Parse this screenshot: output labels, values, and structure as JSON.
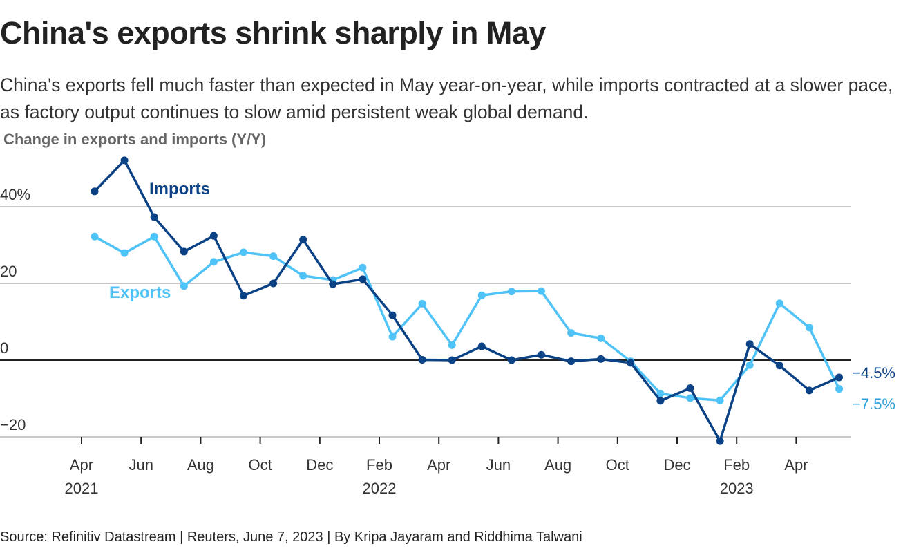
{
  "header": {
    "title": "China's exports shrink sharply in May",
    "subtitle": "China's exports fell much faster than expected in May year-on-year, while imports contracted at a slower pace, as factory output continues to slow amid persistent weak global demand."
  },
  "footer": {
    "source": "Source: Refinitiv Datastream | Reuters, June 7, 2023 | By Kripa Jayaram and Riddhima Talwani"
  },
  "colors": {
    "imports": "#0b4185",
    "exports": "#4fc3f7",
    "exports_label_end": "#2a9fd6",
    "grid": "#c8c8c8",
    "zero_line": "#222222",
    "tick_text": "#333333"
  },
  "chart_data": {
    "type": "line",
    "title": "China's exports shrink sharply in May",
    "ylabel": "Change in exports and imports (Y/Y)",
    "xlabel": "",
    "ylim": [
      -20,
      40
    ],
    "yticks": [
      {
        "value": 40,
        "label": "40%"
      },
      {
        "value": 20,
        "label": "20"
      },
      {
        "value": 0,
        "label": "0"
      },
      {
        "value": -20,
        "label": "−20"
      }
    ],
    "xticks": [
      {
        "month_index": 0,
        "label": "Apr",
        "year": "2021"
      },
      {
        "month_index": 2,
        "label": "Jun",
        "year": ""
      },
      {
        "month_index": 4,
        "label": "Aug",
        "year": ""
      },
      {
        "month_index": 6,
        "label": "Oct",
        "year": ""
      },
      {
        "month_index": 8,
        "label": "Dec",
        "year": ""
      },
      {
        "month_index": 10,
        "label": "Feb",
        "year": "2022"
      },
      {
        "month_index": 12,
        "label": "Apr",
        "year": ""
      },
      {
        "month_index": 14,
        "label": "Jun",
        "year": ""
      },
      {
        "month_index": 16,
        "label": "Aug",
        "year": ""
      },
      {
        "month_index": 18,
        "label": "Oct",
        "year": ""
      },
      {
        "month_index": 20,
        "label": "Dec",
        "year": ""
      },
      {
        "month_index": 22,
        "label": "Feb",
        "year": "2023"
      },
      {
        "month_index": 24,
        "label": "Apr",
        "year": ""
      }
    ],
    "x": [
      "2021-04",
      "2021-05",
      "2021-06",
      "2021-07",
      "2021-08",
      "2021-09",
      "2021-10",
      "2021-11",
      "2021-12",
      "2022-01",
      "2022-02",
      "2022-03",
      "2022-04",
      "2022-05",
      "2022-06",
      "2022-07",
      "2022-08",
      "2022-09",
      "2022-10",
      "2022-11",
      "2022-12",
      "2023-01",
      "2023-02",
      "2023-03",
      "2023-04",
      "2023-05"
    ],
    "grid": true,
    "legend": "inline labels",
    "series": [
      {
        "name": "Imports",
        "values": [
          44.0,
          52.1,
          37.3,
          28.3,
          32.4,
          16.8,
          20.0,
          31.4,
          19.8,
          21.1,
          11.7,
          0.1,
          0.0,
          3.6,
          0.0,
          1.4,
          -0.3,
          0.3,
          -0.7,
          -10.6,
          -7.3,
          -21.1,
          4.2,
          -1.4,
          -7.9,
          -4.5
        ],
        "end_label": "−4.5%"
      },
      {
        "name": "Exports",
        "values": [
          32.2,
          27.9,
          32.2,
          19.3,
          25.6,
          28.1,
          27.1,
          22.0,
          20.9,
          24.1,
          6.1,
          14.7,
          3.9,
          16.9,
          17.9,
          18.0,
          7.1,
          5.7,
          -0.3,
          -8.7,
          -9.9,
          -10.5,
          -1.3,
          14.8,
          8.5,
          -7.5
        ],
        "end_label": "−7.5%"
      }
    ]
  }
}
